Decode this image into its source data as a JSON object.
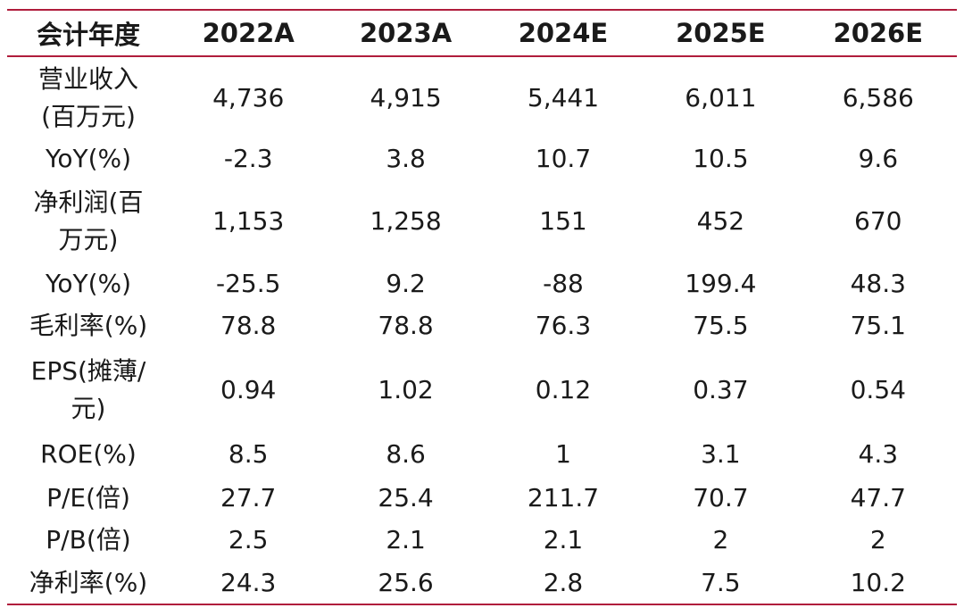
{
  "table": {
    "headers": [
      "会计年度",
      "2022A",
      "2023A",
      "2024E",
      "2025E",
      "2026E"
    ],
    "rows": [
      {
        "label_lines": [
          "营业收入",
          "(百万元)"
        ],
        "values": [
          "4,736",
          "4,915",
          "5,441",
          "6,011",
          "6,586"
        ]
      },
      {
        "label_lines": [
          "YoY(%)"
        ],
        "values": [
          "-2.3",
          "3.8",
          "10.7",
          "10.5",
          "9.6"
        ]
      },
      {
        "label_lines": [
          "净利润(百",
          "万元)"
        ],
        "values": [
          "1,153",
          "1,258",
          "151",
          "452",
          "670"
        ]
      },
      {
        "label_lines": [
          "YoY(%)"
        ],
        "values": [
          "-25.5",
          "9.2",
          "-88",
          "199.4",
          "48.3"
        ]
      },
      {
        "label_lines": [
          "毛利率(%)"
        ],
        "values": [
          "78.8",
          "78.8",
          "76.3",
          "75.5",
          "75.1"
        ]
      },
      {
        "label_lines": [
          "EPS(摊薄/",
          "元)"
        ],
        "values": [
          "0.94",
          "1.02",
          "0.12",
          "0.37",
          "0.54"
        ]
      },
      {
        "label_lines": [
          "ROE(%)"
        ],
        "values": [
          "8.5",
          "8.6",
          "1",
          "3.1",
          "4.3"
        ]
      },
      {
        "label_lines": [
          "P/E(倍)"
        ],
        "values": [
          "27.7",
          "25.4",
          "211.7",
          "70.7",
          "47.7"
        ]
      },
      {
        "label_lines": [
          "P/B(倍)"
        ],
        "values": [
          "2.5",
          "2.1",
          "2.1",
          "2",
          "2"
        ]
      },
      {
        "label_lines": [
          "净利率(%)"
        ],
        "values": [
          "24.3",
          "25.6",
          "2.8",
          "7.5",
          "10.2"
        ]
      }
    ]
  },
  "colors": {
    "rule": "#b01c3c",
    "text": "#1a1a1a"
  }
}
